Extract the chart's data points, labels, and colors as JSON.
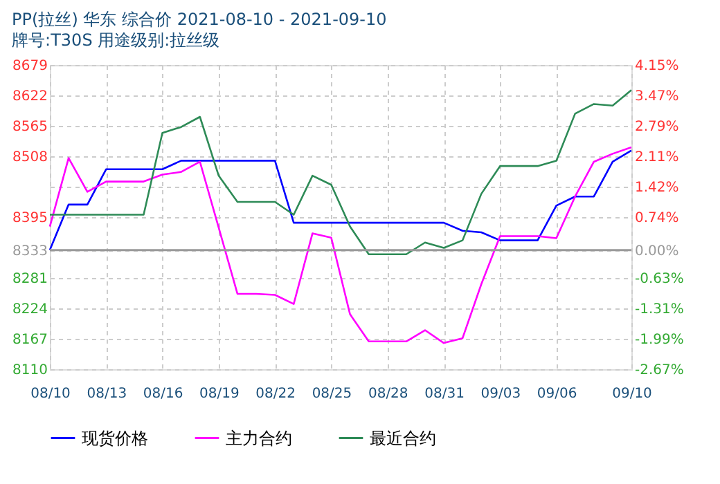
{
  "chart_data": {
    "type": "line",
    "title": "PP(拉丝) 华东 综合价 2021-08-10 - 2021-09-10",
    "subtitle": "牌号:T30S 用途级别:拉丝级",
    "x": [
      "2021-08-10",
      "2021-08-11",
      "2021-08-12",
      "2021-08-13",
      "2021-08-14",
      "2021-08-15",
      "2021-08-16",
      "2021-08-17",
      "2021-08-18",
      "2021-08-19",
      "2021-08-20",
      "2021-08-21",
      "2021-08-22",
      "2021-08-23",
      "2021-08-24",
      "2021-08-25",
      "2021-08-26",
      "2021-08-27",
      "2021-08-28",
      "2021-08-29",
      "2021-08-30",
      "2021-08-31",
      "2021-09-01",
      "2021-09-02",
      "2021-09-03",
      "2021-09-04",
      "2021-09-05",
      "2021-09-06",
      "2021-09-07",
      "2021-09-08",
      "2021-09-09",
      "2021-09-10"
    ],
    "series": [
      {
        "name": "现货价格",
        "color": "#0000ff",
        "values": [
          8333,
          8418,
          8418,
          8484,
          8484,
          8484,
          8484,
          8500,
          8500,
          8500,
          8500,
          8500,
          8500,
          8384,
          8384,
          8384,
          8384,
          8384,
          8384,
          8384,
          8384,
          8384,
          8369,
          8366,
          8351,
          8351,
          8351,
          8416,
          8433,
          8433,
          8498,
          8519
        ]
      },
      {
        "name": "主力合约",
        "color": "#ff00ff",
        "values": [
          8377,
          8505,
          8442,
          8461,
          8461,
          8461,
          8474,
          8479,
          8498,
          8375,
          8251,
          8251,
          8249,
          8232,
          8364,
          8356,
          8213,
          8162,
          8162,
          8162,
          8183,
          8159,
          8168,
          8269,
          8359,
          8359,
          8359,
          8355,
          8433,
          8498,
          8513,
          8525
        ]
      },
      {
        "name": "最近合约",
        "color": "#2e8b57",
        "values": [
          8399,
          8399,
          8399,
          8399,
          8399,
          8399,
          8552,
          8563,
          8582,
          8472,
          8423,
          8423,
          8423,
          8399,
          8472,
          8455,
          8377,
          8325,
          8325,
          8325,
          8347,
          8337,
          8351,
          8438,
          8490,
          8490,
          8490,
          8500,
          8588,
          8606,
          8603,
          8632
        ]
      }
    ],
    "xlim": [
      "2021-08-10",
      "2021-09-10"
    ],
    "xticks": [
      {
        "value": "2021-08-10",
        "label": "08/10"
      },
      {
        "value": "2021-08-13",
        "label": "08/13"
      },
      {
        "value": "2021-08-16",
        "label": "08/16"
      },
      {
        "value": "2021-08-19",
        "label": "08/19"
      },
      {
        "value": "2021-08-22",
        "label": "08/22"
      },
      {
        "value": "2021-08-25",
        "label": "08/25"
      },
      {
        "value": "2021-08-28",
        "label": "08/28"
      },
      {
        "value": "2021-08-31",
        "label": "08/31"
      },
      {
        "value": "2021-09-03",
        "label": "09/03"
      },
      {
        "value": "2021-09-06",
        "label": "09/06"
      },
      {
        "value": "2021-09-10",
        "label": "09/10"
      }
    ],
    "ylim": [
      8110,
      8679
    ],
    "yticks": [
      8110,
      8167,
      8224,
      8281,
      8333,
      8395,
      {
        "value": 8452,
        "label": null
      },
      8508,
      8565,
      8622,
      8679
    ],
    "y2lim": [
      -2.67,
      4.15
    ],
    "y2ticks": [
      {
        "value": -2.67,
        "label": "-2.67%"
      },
      {
        "value": -1.99,
        "label": "-1.99%"
      },
      {
        "value": -1.31,
        "label": "-1.31%"
      },
      {
        "value": -0.63,
        "label": "-0.63%"
      },
      {
        "value": 0,
        "label": "0.00%"
      },
      {
        "value": 0.74,
        "label": "0.74%"
      },
      {
        "value": 1.42,
        "label": "1.42%"
      },
      {
        "value": 2.11,
        "label": "2.11%"
      },
      {
        "value": 2.79,
        "label": "2.79%"
      },
      {
        "value": 3.47,
        "label": "3.47%"
      },
      {
        "value": 4.15,
        "label": "4.15%"
      }
    ],
    "ref_lines": [
      {
        "axis": "y2",
        "value": 0,
        "color": "#999999"
      }
    ],
    "grid": true,
    "legend": "bottom",
    "marker": "none",
    "line_style": "solid"
  }
}
